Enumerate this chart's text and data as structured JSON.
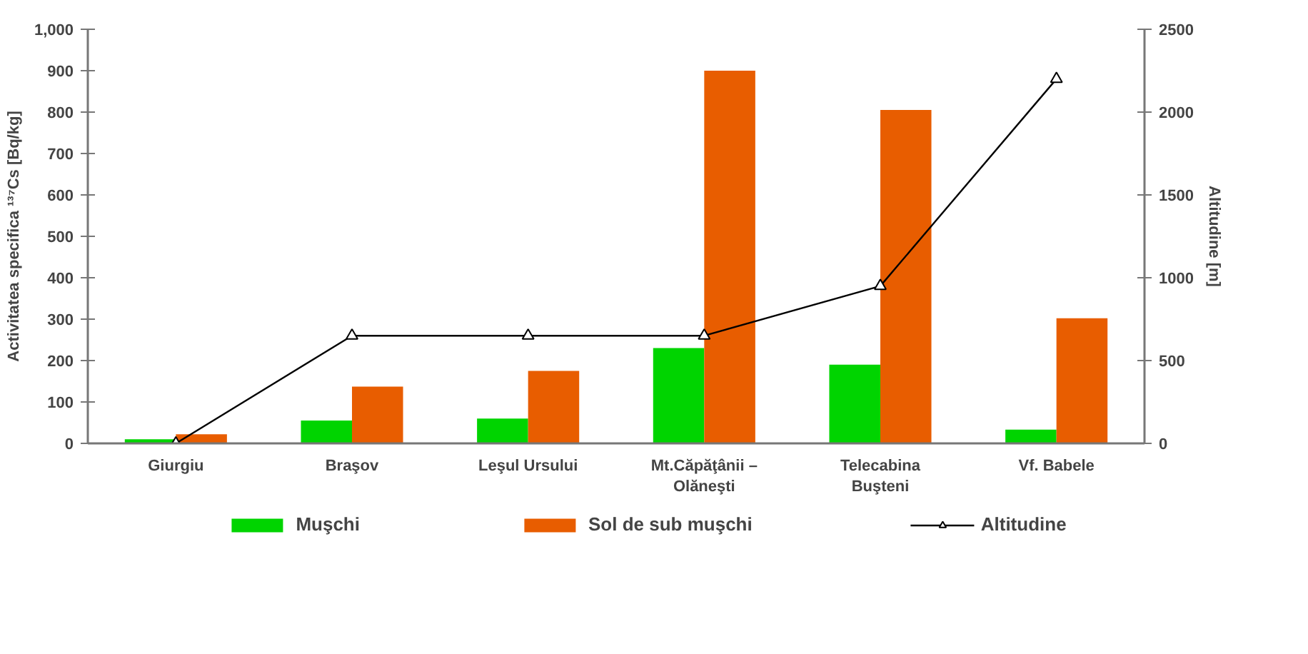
{
  "chart_data": {
    "type": "bar",
    "categories": [
      "Giurgiu",
      "Braşov",
      "Leşul Ursului",
      "Mt.Căpăţânii –\nOlăneşti",
      "Telecabina\nBuşteni",
      "Vf. Babele"
    ],
    "series": [
      {
        "name": "Muşchi",
        "color": "#00d400",
        "values": [
          10,
          55,
          60,
          230,
          190,
          33
        ]
      },
      {
        "name": "Sol de sub muşchi",
        "color": "#e85d00",
        "values": [
          22,
          137,
          175,
          900,
          805,
          302
        ]
      },
      {
        "name": "Altitudine",
        "type": "line",
        "axis": "y2",
        "color": "#000000",
        "marker": "triangle",
        "values": [
          0,
          650,
          650,
          650,
          950,
          2200
        ]
      }
    ],
    "ylabel": "Activitatea specifica ¹³⁷Cs [Bq/kg]",
    "y2label": "Altitudine [m]",
    "ylim": [
      0,
      1000
    ],
    "yticks": [
      0,
      100,
      200,
      300,
      400,
      500,
      600,
      700,
      800,
      900,
      {
        "value": 1000,
        "label": "1,000"
      }
    ],
    "y2lim": [
      0,
      2500
    ],
    "y2ticks": [
      0,
      500,
      1000,
      1500,
      2000,
      2500
    ],
    "legend": "bottom",
    "grid": false
  }
}
